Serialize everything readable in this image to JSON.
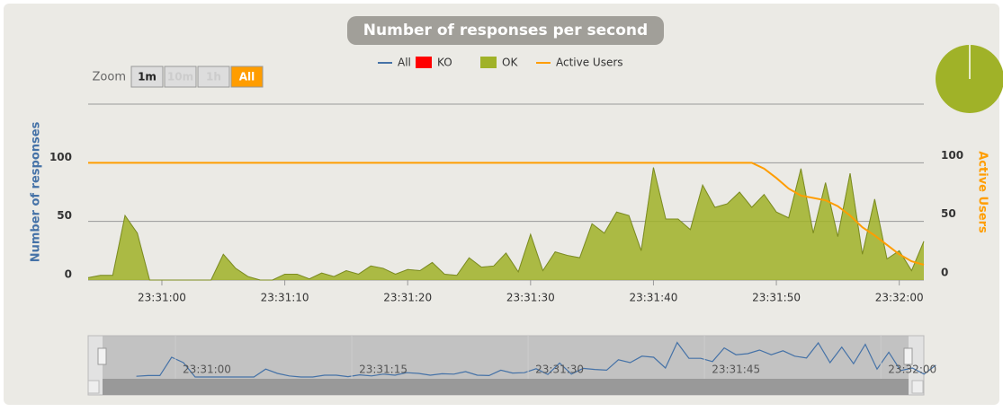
{
  "chart_data": {
    "type": "area",
    "title": "Number of responses per second",
    "y_label": "Number of responses",
    "y2_label": "Active Users",
    "x": [
      "23:30:54",
      "23:30:55",
      "23:30:56",
      "23:30:57",
      "23:30:58",
      "23:30:59",
      "23:31:00",
      "23:31:01",
      "23:31:02",
      "23:31:03",
      "23:31:04",
      "23:31:05",
      "23:31:06",
      "23:31:07",
      "23:31:08",
      "23:31:09",
      "23:31:10",
      "23:31:11",
      "23:31:12",
      "23:31:13",
      "23:31:14",
      "23:31:15",
      "23:31:16",
      "23:31:17",
      "23:31:18",
      "23:31:19",
      "23:31:20",
      "23:31:21",
      "23:31:22",
      "23:31:23",
      "23:31:24",
      "23:31:25",
      "23:31:26",
      "23:31:27",
      "23:31:28",
      "23:31:29",
      "23:31:30",
      "23:31:31",
      "23:31:32",
      "23:31:33",
      "23:31:34",
      "23:31:35",
      "23:31:36",
      "23:31:37",
      "23:31:38",
      "23:31:39",
      "23:31:40",
      "23:31:41",
      "23:31:42",
      "23:31:43",
      "23:31:44",
      "23:31:45",
      "23:31:46",
      "23:31:47",
      "23:31:48",
      "23:31:49",
      "23:31:50",
      "23:31:51",
      "23:31:52",
      "23:31:53",
      "23:31:54",
      "23:31:55",
      "23:31:56",
      "23:31:57",
      "23:31:58",
      "23:31:59",
      "23:32:00",
      "23:32:01",
      "23:32:02"
    ],
    "series": [
      {
        "name": "All",
        "color": "#4572a7",
        "values": [
          2,
          4,
          4,
          55,
          40,
          0,
          0,
          0,
          0,
          0,
          0,
          22,
          10,
          3,
          0,
          0,
          5,
          5,
          1,
          6,
          3,
          8,
          5,
          12,
          10,
          5,
          9,
          8,
          15,
          5,
          4,
          19,
          11,
          12,
          23,
          7,
          39,
          8,
          24,
          21,
          19,
          48,
          40,
          58,
          55,
          25,
          96,
          52,
          52,
          43,
          81,
          62,
          65,
          75,
          62,
          73,
          58,
          53,
          95,
          40,
          83,
          37,
          91,
          22,
          69,
          18,
          25,
          8,
          33
        ]
      },
      {
        "name": "KO",
        "color": "#ff0000",
        "values": [
          0,
          0,
          0,
          0,
          0,
          0,
          0,
          0,
          0,
          0,
          0,
          0,
          0,
          0,
          0,
          0,
          0,
          0,
          0,
          0,
          0,
          0,
          0,
          0,
          0,
          0,
          0,
          0,
          0,
          0,
          0,
          0,
          0,
          0,
          0,
          0,
          0,
          0,
          0,
          0,
          0,
          0,
          0,
          0,
          0,
          0,
          0,
          0,
          0,
          0,
          0,
          0,
          0,
          0,
          0,
          0,
          0,
          0,
          0,
          0,
          0,
          0,
          0,
          0,
          0,
          0,
          0,
          0,
          0
        ]
      },
      {
        "name": "OK",
        "color": "#a0b228",
        "values": [
          2,
          4,
          4,
          55,
          40,
          0,
          0,
          0,
          0,
          0,
          0,
          22,
          10,
          3,
          0,
          0,
          5,
          5,
          1,
          6,
          3,
          8,
          5,
          12,
          10,
          5,
          9,
          8,
          15,
          5,
          4,
          19,
          11,
          12,
          23,
          7,
          39,
          8,
          24,
          21,
          19,
          48,
          40,
          58,
          55,
          25,
          96,
          52,
          52,
          43,
          81,
          62,
          65,
          75,
          62,
          73,
          58,
          53,
          95,
          40,
          83,
          37,
          91,
          22,
          69,
          18,
          25,
          8,
          33
        ]
      },
      {
        "name": "Active Users",
        "color": "#ff9d00",
        "axis": "y2",
        "values": [
          100,
          100,
          100,
          100,
          100,
          100,
          100,
          100,
          100,
          100,
          100,
          100,
          100,
          100,
          100,
          100,
          100,
          100,
          100,
          100,
          100,
          100,
          100,
          100,
          100,
          100,
          100,
          100,
          100,
          100,
          100,
          100,
          100,
          100,
          100,
          100,
          100,
          100,
          100,
          100,
          100,
          100,
          100,
          100,
          100,
          100,
          100,
          100,
          100,
          100,
          100,
          100,
          100,
          100,
          100,
          95,
          87,
          78,
          72,
          70,
          68,
          63,
          55,
          45,
          38,
          30,
          22,
          16,
          13
        ]
      }
    ],
    "xlim": [
      "23:30:54",
      "23:32:02"
    ],
    "xticks": [
      "23:31:00",
      "23:31:10",
      "23:31:20",
      "23:31:30",
      "23:31:40",
      "23:31:50",
      "23:32:00"
    ],
    "ylim": [
      0,
      150
    ],
    "yticks": [
      0,
      50,
      100
    ],
    "y2lim": [
      0,
      150
    ],
    "y2ticks": [
      0,
      50,
      100
    ],
    "grid": true,
    "navigator_xticks": [
      "23:31:00",
      "23:31:15",
      "23:31:30",
      "23:31:45",
      "23:32:00"
    ]
  },
  "zoom": {
    "label": "Zoom",
    "buttons": [
      "1m",
      "10m",
      "1h",
      "All"
    ]
  }
}
